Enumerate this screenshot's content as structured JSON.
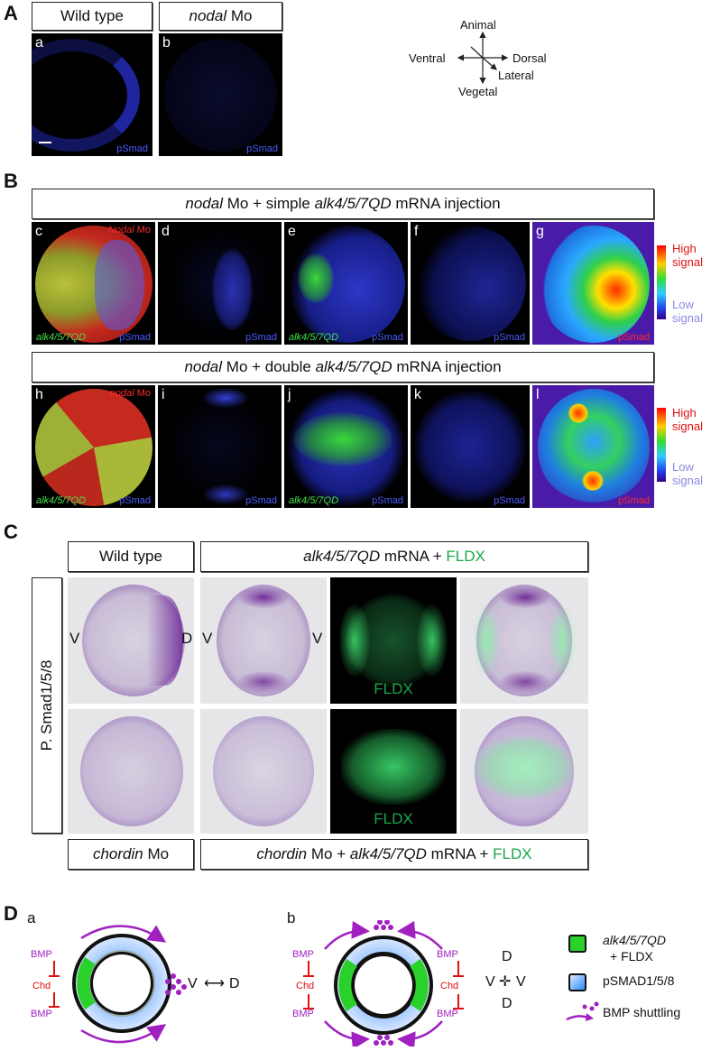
{
  "panelA": {
    "label": "A",
    "headers": [
      "Wild type",
      "nodal"
    ],
    "header_suffix": "Mo",
    "sub": [
      "a",
      "b"
    ],
    "marker": "pSmad",
    "axes": {
      "animal": "Animal",
      "vegetal": "Vegetal",
      "ventral": "Ventral",
      "dorsal": "Dorsal",
      "lateral": "Lateral"
    }
  },
  "panelB": {
    "label": "B",
    "row1_header": {
      "italic_a": "nodal",
      "text_a": "Mo + simple",
      "italic_b": "alk4/5/7QD",
      "text_b": "mRNA injection"
    },
    "row2_header": {
      "italic_a": "nodal",
      "text_a": "Mo + double",
      "italic_b": "alk4/5/7QD",
      "text_b": "mRNA injection"
    },
    "row1_sub": [
      "c",
      "d",
      "e",
      "f",
      "g"
    ],
    "row2_sub": [
      "h",
      "i",
      "j",
      "k",
      "l"
    ],
    "nodal_label_r1": "Nodal",
    "nodal_label_r2": "nodal",
    "mo": "Mo",
    "alk": "alk4/5/7QD",
    "marker": "pSmad",
    "scale": {
      "high": "High",
      "low": "Low",
      "signal": "signal"
    }
  },
  "panelC": {
    "label": "C",
    "header_wt": "Wild type",
    "header_alk": {
      "italic": "alk4/5/7QD",
      "text": "mRNA +",
      "fldx": "FLDX"
    },
    "side_label": "P. Smad1/5/8",
    "v": "V",
    "d": "D",
    "fldx": "FLDX",
    "footer_chd": {
      "italic": "chordin",
      "text": "Mo"
    },
    "footer_alk": {
      "italic_a": "chordin",
      "text_a": "Mo +",
      "italic_b": "alk4/5/7QD",
      "text_b": "mRNA +",
      "fldx": "FLDX"
    }
  },
  "panelD": {
    "label": "D",
    "sub": [
      "a",
      "b"
    ],
    "bmp": "BMP",
    "chd": "Chd",
    "v": "V",
    "d": "D",
    "legend": {
      "alk": "alk4/5/7QD",
      "fldx": "+ FLDX",
      "psmad": "pSMAD1/5/8",
      "shuttle": "BMP shuttling"
    }
  },
  "colors": {
    "green": "#2bd12b",
    "purple": "#a020c0",
    "red": "#e01010",
    "fldx": "#1aa64a"
  }
}
